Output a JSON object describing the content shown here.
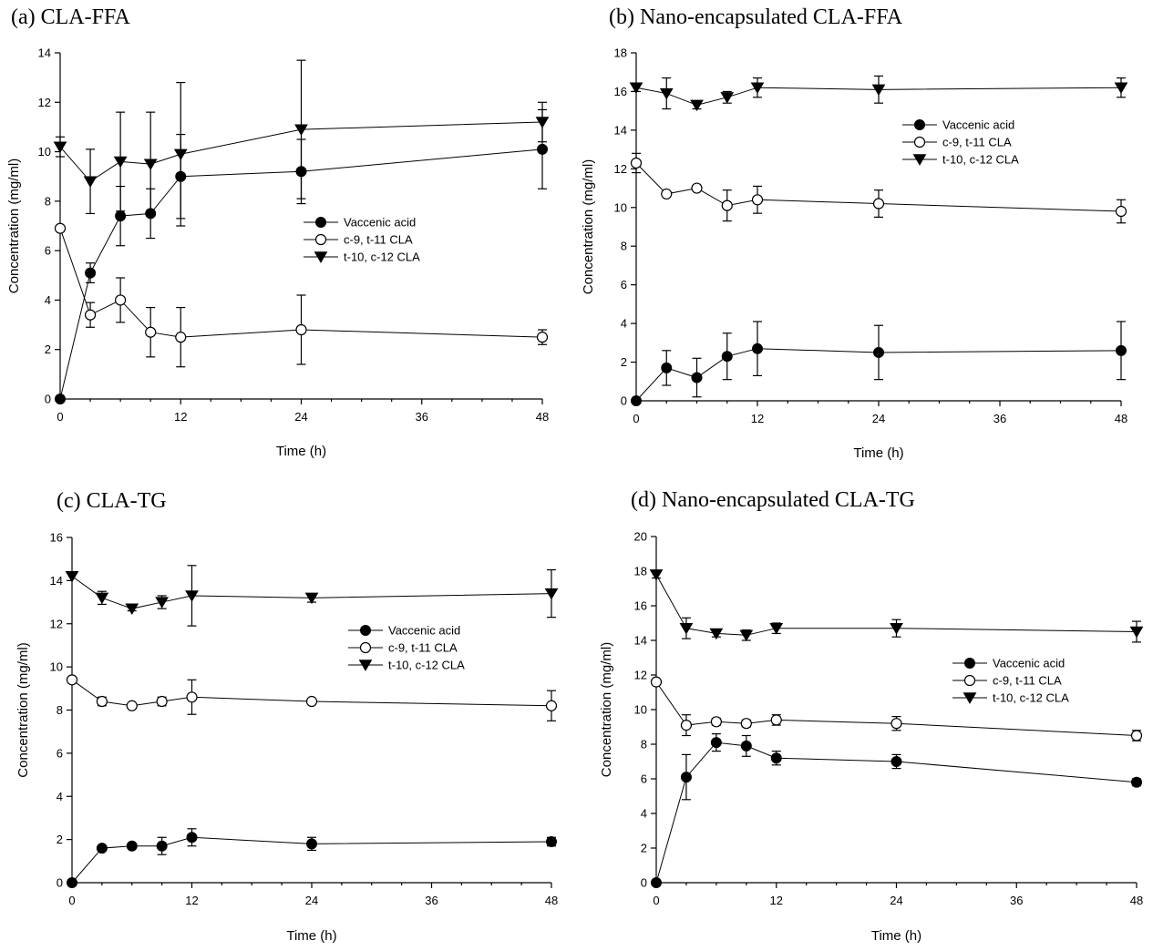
{
  "legend": {
    "vaccenic": "Vaccenic acid",
    "c9t11": "c-9, t-11 CLA",
    "t10c12": "t-10, c-12 CLA"
  },
  "chart_data": [
    {
      "id": "a",
      "type": "line",
      "title": "(a) CLA-FFA",
      "xlabel": "Time (h)",
      "ylabel": "Concentration (mg/ml)",
      "xlim": [
        0,
        48
      ],
      "ylim": [
        0,
        14
      ],
      "xticks": [
        0,
        12,
        24,
        36,
        48
      ],
      "yticks": [
        0,
        2,
        4,
        6,
        8,
        10,
        12,
        14
      ],
      "legend_position": "center-right",
      "x": [
        0,
        3,
        6,
        9,
        12,
        24,
        48
      ],
      "series": [
        {
          "name": "Vaccenic acid",
          "marker": "filled-circle",
          "values": [
            0,
            5.1,
            7.4,
            7.5,
            9.0,
            9.2,
            10.1
          ],
          "errors": [
            0,
            0.4,
            1.2,
            1.0,
            1.7,
            1.3,
            1.6
          ]
        },
        {
          "name": "c-9, t-11 CLA",
          "marker": "open-circle",
          "values": [
            6.9,
            3.4,
            4.0,
            2.7,
            2.5,
            2.8,
            2.5
          ],
          "errors": [
            0,
            0.5,
            0.9,
            1.0,
            1.2,
            1.4,
            0.3
          ]
        },
        {
          "name": "t-10, c-12 CLA",
          "marker": "filled-triangle",
          "values": [
            10.2,
            8.8,
            9.6,
            9.5,
            9.9,
            10.9,
            11.2
          ],
          "errors": [
            0.4,
            1.3,
            2.0,
            2.1,
            2.9,
            2.8,
            0.8
          ]
        }
      ]
    },
    {
      "id": "b",
      "type": "line",
      "title": "(b) Nano-encapsulated CLA-FFA",
      "xlabel": "Time (h)",
      "ylabel": "Concentration (mg/ml)",
      "xlim": [
        0,
        48
      ],
      "ylim": [
        0,
        18
      ],
      "xticks": [
        0,
        12,
        24,
        36,
        48
      ],
      "yticks": [
        0,
        2,
        4,
        6,
        8,
        10,
        12,
        14,
        16,
        18
      ],
      "legend_position": "upper-right",
      "x": [
        0,
        3,
        6,
        9,
        12,
        24,
        48
      ],
      "series": [
        {
          "name": "Vaccenic acid",
          "marker": "filled-circle",
          "values": [
            0,
            1.7,
            1.2,
            2.3,
            2.7,
            2.5,
            2.6
          ],
          "errors": [
            0,
            0.9,
            1.0,
            1.2,
            1.4,
            1.4,
            1.5
          ]
        },
        {
          "name": "c-9, t-11 CLA",
          "marker": "open-circle",
          "values": [
            12.3,
            10.7,
            11.0,
            10.1,
            10.4,
            10.2,
            9.8
          ],
          "errors": [
            0.5,
            0,
            0,
            0.8,
            0.7,
            0.7,
            0.6
          ]
        },
        {
          "name": "t-10, c-12 CLA",
          "marker": "filled-triangle",
          "values": [
            16.2,
            15.9,
            15.3,
            15.7,
            16.2,
            16.1,
            16.2
          ],
          "errors": [
            0.2,
            0.8,
            0.2,
            0.3,
            0.5,
            0.7,
            0.5
          ]
        }
      ]
    },
    {
      "id": "c",
      "type": "line",
      "title": "(c) CLA-TG",
      "xlabel": "Time (h)",
      "ylabel": "Concentration (mg/ml)",
      "xlim": [
        0,
        48
      ],
      "ylim": [
        0,
        16
      ],
      "xticks": [
        0,
        12,
        24,
        36,
        48
      ],
      "yticks": [
        0,
        2,
        4,
        6,
        8,
        10,
        12,
        14,
        16
      ],
      "legend_position": "center-right",
      "x": [
        0,
        3,
        6,
        9,
        12,
        24,
        48
      ],
      "series": [
        {
          "name": "Vaccenic acid",
          "marker": "filled-circle",
          "values": [
            0,
            1.6,
            1.7,
            1.7,
            2.1,
            1.8,
            1.9
          ],
          "errors": [
            0,
            0,
            0,
            0.4,
            0.4,
            0.3,
            0.2
          ]
        },
        {
          "name": "c-9, t-11 CLA",
          "marker": "open-circle",
          "values": [
            9.4,
            8.4,
            8.2,
            8.4,
            8.6,
            8.4,
            8.2
          ],
          "errors": [
            0,
            0.2,
            0.1,
            0.2,
            0.8,
            0,
            0.7
          ]
        },
        {
          "name": "t-10, c-12 CLA",
          "marker": "filled-triangle",
          "values": [
            14.2,
            13.2,
            12.7,
            13.0,
            13.3,
            13.2,
            13.4
          ],
          "errors": [
            0,
            0.3,
            0.1,
            0.3,
            1.4,
            0.2,
            1.1
          ]
        }
      ]
    },
    {
      "id": "d",
      "type": "line",
      "title": "(d) Nano-encapsulated CLA-TG",
      "xlabel": "Time (h)",
      "ylabel": "Concentration (mg/ml)",
      "xlim": [
        0,
        48
      ],
      "ylim": [
        0,
        20
      ],
      "xticks": [
        0,
        12,
        24,
        36,
        48
      ],
      "yticks": [
        0,
        2,
        4,
        6,
        8,
        10,
        12,
        14,
        16,
        18,
        20
      ],
      "legend_position": "center-right",
      "x": [
        0,
        3,
        6,
        9,
        12,
        24,
        48
      ],
      "series": [
        {
          "name": "Vaccenic acid",
          "marker": "filled-circle",
          "values": [
            0,
            6.1,
            8.1,
            7.9,
            7.2,
            7.0,
            5.8
          ],
          "errors": [
            0,
            1.3,
            0.5,
            0.6,
            0.4,
            0.4,
            0.2
          ]
        },
        {
          "name": "c-9, t-11 CLA",
          "marker": "open-circle",
          "values": [
            11.6,
            9.1,
            9.3,
            9.2,
            9.4,
            9.2,
            8.5
          ],
          "errors": [
            0,
            0.6,
            0.2,
            0.2,
            0.3,
            0.4,
            0.3
          ]
        },
        {
          "name": "t-10, c-12 CLA",
          "marker": "filled-triangle",
          "values": [
            17.8,
            14.7,
            14.4,
            14.3,
            14.7,
            14.7,
            14.5
          ],
          "errors": [
            0.2,
            0.6,
            0.2,
            0.3,
            0.3,
            0.5,
            0.6
          ]
        }
      ]
    }
  ]
}
